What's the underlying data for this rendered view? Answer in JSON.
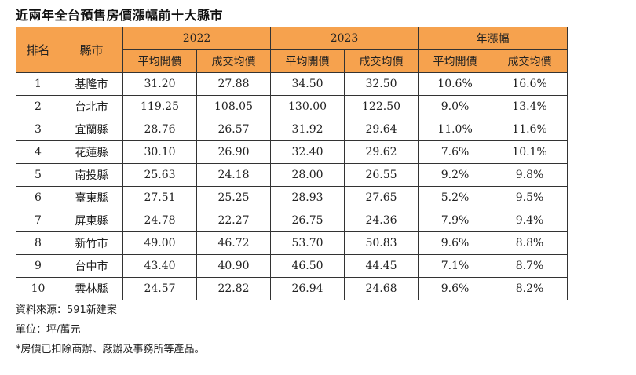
{
  "title": "近兩年全台預售房價漲幅前十大縣市",
  "header": {
    "rank": "排名",
    "city": "縣市",
    "year_2022": "2022",
    "year_2023": "2023",
    "growth": "年漲幅",
    "sub": [
      "平均開價",
      "成交均價",
      "平均開價",
      "成交均價",
      "平均開價",
      "成交均價"
    ]
  },
  "rows": [
    {
      "rank": "1",
      "city": "基隆市",
      "ask22": "31.20",
      "deal22": "27.88",
      "ask23": "34.50",
      "deal23": "32.50",
      "ask_g": "10.6%",
      "deal_g": "16.6%"
    },
    {
      "rank": "2",
      "city": "台北市",
      "ask22": "119.25",
      "deal22": "108.05",
      "ask23": "130.00",
      "deal23": "122.50",
      "ask_g": "9.0%",
      "deal_g": "13.4%"
    },
    {
      "rank": "3",
      "city": "宜蘭縣",
      "ask22": "28.76",
      "deal22": "26.57",
      "ask23": "31.92",
      "deal23": "29.64",
      "ask_g": "11.0%",
      "deal_g": "11.6%"
    },
    {
      "rank": "4",
      "city": "花蓮縣",
      "ask22": "30.10",
      "deal22": "26.90",
      "ask23": "32.40",
      "deal23": "29.62",
      "ask_g": "7.6%",
      "deal_g": "10.1%"
    },
    {
      "rank": "5",
      "city": "南投縣",
      "ask22": "25.63",
      "deal22": "24.18",
      "ask23": "28.00",
      "deal23": "26.55",
      "ask_g": "9.2%",
      "deal_g": "9.8%"
    },
    {
      "rank": "6",
      "city": "臺東縣",
      "ask22": "27.51",
      "deal22": "25.25",
      "ask23": "28.93",
      "deal23": "27.65",
      "ask_g": "5.2%",
      "deal_g": "9.5%"
    },
    {
      "rank": "7",
      "city": "屏東縣",
      "ask22": "24.78",
      "deal22": "22.27",
      "ask23": "26.75",
      "deal23": "24.36",
      "ask_g": "7.9%",
      "deal_g": "9.4%"
    },
    {
      "rank": "8",
      "city": "新竹市",
      "ask22": "49.00",
      "deal22": "46.72",
      "ask23": "53.70",
      "deal23": "50.83",
      "ask_g": "9.6%",
      "deal_g": "8.8%"
    },
    {
      "rank": "9",
      "city": "台中市",
      "ask22": "43.40",
      "deal22": "40.90",
      "ask23": "46.50",
      "deal23": "44.45",
      "ask_g": "7.1%",
      "deal_g": "8.7%"
    },
    {
      "rank": "10",
      "city": "雲林縣",
      "ask22": "24.57",
      "deal22": "22.82",
      "ask23": "26.94",
      "deal23": "24.68",
      "ask_g": "9.6%",
      "deal_g": "8.2%"
    }
  ],
  "notes": {
    "source": "資料來源：591新建案",
    "unit": "單位：坪/萬元",
    "remark": "*房價已扣除商辦、廠辦及事務所等產品。"
  },
  "colors": {
    "header_bg": "#f6a24e",
    "border": "#333333"
  }
}
